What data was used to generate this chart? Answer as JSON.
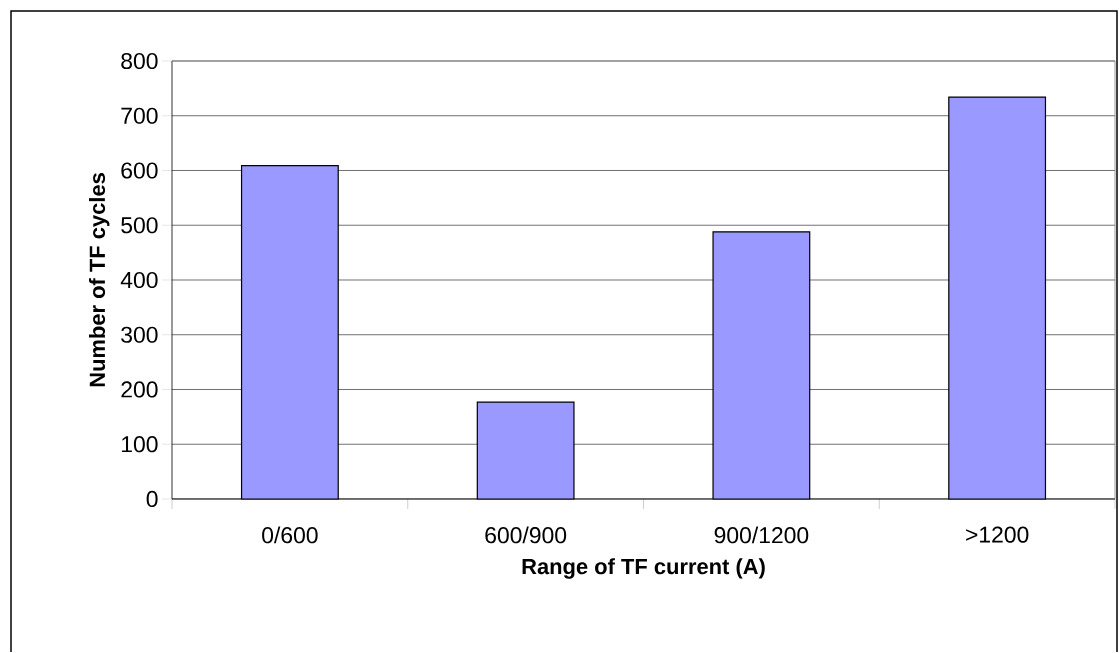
{
  "chart_data": {
    "type": "bar",
    "xlabel": "Range of TF current (A)",
    "ylabel": "Number of TF cycles",
    "categories": [
      "0/600",
      "600/900",
      "900/1200",
      ">1200"
    ],
    "values": [
      609,
      177,
      488,
      734
    ],
    "color": "#9999ff",
    "ylim": [
      0,
      800
    ],
    "yticks": [
      0,
      100,
      200,
      300,
      400,
      500,
      600,
      700,
      800
    ],
    "grid": "y"
  }
}
